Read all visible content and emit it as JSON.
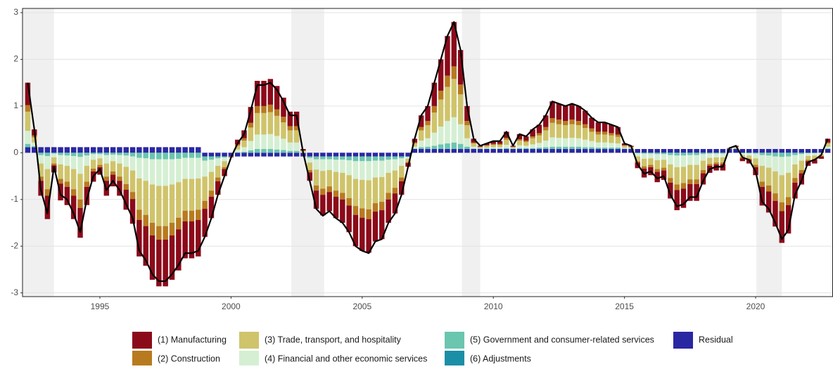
{
  "chart_data": {
    "type": "bar",
    "x": [
      1992.25,
      1992.5,
      1992.75,
      1993,
      1993.25,
      1993.5,
      1993.75,
      1994,
      1994.25,
      1994.5,
      1994.75,
      1995,
      1995.25,
      1995.5,
      1995.75,
      1996,
      1996.25,
      1996.5,
      1996.75,
      1997,
      1997.25,
      1997.5,
      1997.75,
      1998,
      1998.25,
      1998.5,
      1998.75,
      1999,
      1999.25,
      1999.5,
      1999.75,
      2000,
      2000.25,
      2000.5,
      2000.75,
      2001,
      2001.25,
      2001.5,
      2001.75,
      2002,
      2002.25,
      2002.5,
      2002.75,
      2003,
      2003.25,
      2003.5,
      2003.75,
      2004,
      2004.25,
      2004.5,
      2004.75,
      2005,
      2005.25,
      2005.5,
      2005.75,
      2006,
      2006.25,
      2006.5,
      2006.75,
      2007,
      2007.25,
      2007.5,
      2007.75,
      2008,
      2008.25,
      2008.5,
      2008.75,
      2009,
      2009.25,
      2009.5,
      2009.75,
      2010,
      2010.25,
      2010.5,
      2010.75,
      2011,
      2011.25,
      2011.5,
      2011.75,
      2012,
      2012.25,
      2012.5,
      2012.75,
      2013,
      2013.25,
      2013.5,
      2013.75,
      2014,
      2014.25,
      2014.5,
      2014.75,
      2015,
      2015.25,
      2015.5,
      2015.75,
      2016,
      2016.25,
      2016.5,
      2016.75,
      2017,
      2017.25,
      2017.5,
      2017.75,
      2018,
      2018.25,
      2018.5,
      2018.75,
      2019,
      2019.25,
      2019.5,
      2019.75,
      2020,
      2020.25,
      2020.5,
      2020.75,
      2021,
      2021.25,
      2021.5,
      2021.75,
      2022,
      2022.25,
      2022.5,
      2022.75
    ],
    "series": [
      {
        "name": "(1) Manufacturing",
        "color": "#8b0a1a",
        "values": [
          0.48,
          0.13,
          -0.32,
          -0.5,
          -0.15,
          -0.36,
          -0.39,
          -0.5,
          -0.64,
          -0.39,
          -0.22,
          -0.16,
          -0.32,
          -0.25,
          -0.32,
          -0.43,
          -0.53,
          -0.78,
          -0.85,
          -0.95,
          -1,
          -1,
          -0.95,
          -0.88,
          -0.79,
          -0.79,
          -0.78,
          -0.6,
          -0.46,
          -0.29,
          -0.15,
          -0.01,
          0.1,
          0.17,
          0.34,
          0.54,
          0.54,
          0.55,
          0.5,
          0.41,
          0.31,
          0.31,
          0.03,
          -0.18,
          -0.39,
          -0.44,
          -0.41,
          -0.46,
          -0.5,
          -0.57,
          -0.67,
          -0.71,
          -0.72,
          -0.64,
          -0.62,
          -0.5,
          -0.43,
          -0.29,
          -0.08,
          0.08,
          0.25,
          0.32,
          0.5,
          0.67,
          0.85,
          0.95,
          0.74,
          0.32,
          0.08,
          0.02,
          0.04,
          0.06,
          0.06,
          0.13,
          0.02,
          0.11,
          0.09,
          0.15,
          0.18,
          0.25,
          0.36,
          0.34,
          0.32,
          0.34,
          0.32,
          0.29,
          0.23,
          0.2,
          0.2,
          0.18,
          0.16,
          0.04,
          0.02,
          -0.12,
          -0.19,
          -0.17,
          -0.22,
          -0.2,
          -0.34,
          -0.43,
          -0.41,
          -0.36,
          -0.36,
          -0.24,
          -0.15,
          -0.13,
          -0.13,
          0.01,
          0.02,
          -0.06,
          -0.08,
          -0.17,
          -0.4,
          -0.45,
          -0.55,
          -0.68,
          -0.61,
          -0.34,
          -0.24,
          -0.1,
          -0.08,
          -0.05,
          0.08
        ]
      },
      {
        "name": "(2) Construction",
        "color": "#b87a1f",
        "values": [
          0.14,
          0.04,
          -0.09,
          -0.14,
          -0.04,
          -0.1,
          -0.11,
          -0.14,
          -0.18,
          -0.11,
          -0.06,
          -0.05,
          -0.09,
          -0.07,
          -0.09,
          -0.12,
          -0.15,
          -0.22,
          -0.24,
          -0.27,
          -0.29,
          -0.29,
          -0.27,
          -0.25,
          -0.23,
          -0.23,
          -0.22,
          -0.17,
          -0.13,
          -0.08,
          -0.04,
          0,
          0.03,
          0.05,
          0.1,
          0.15,
          0.15,
          0.16,
          0.14,
          0.12,
          0.09,
          0.09,
          0.01,
          -0.05,
          -0.11,
          -0.13,
          -0.12,
          -0.13,
          -0.14,
          -0.16,
          -0.19,
          -0.2,
          -0.21,
          -0.18,
          -0.18,
          -0.14,
          -0.12,
          -0.08,
          -0.02,
          0.02,
          0.07,
          0.09,
          0.14,
          0.19,
          0.24,
          0.27,
          0.21,
          0.09,
          0.02,
          0.01,
          0.01,
          0.02,
          0.02,
          0.04,
          0.01,
          0.03,
          0.03,
          0.04,
          0.05,
          0.07,
          0.1,
          0.1,
          0.09,
          0.1,
          0.09,
          0.08,
          0.07,
          0.06,
          0.06,
          0.05,
          0.05,
          0.01,
          0.01,
          -0.03,
          -0.05,
          -0.05,
          -0.06,
          -0.06,
          -0.1,
          -0.12,
          -0.12,
          -0.1,
          -0.1,
          -0.07,
          -0.04,
          -0.04,
          -0.04,
          0,
          0.01,
          -0.02,
          -0.02,
          -0.05,
          -0.11,
          -0.13,
          -0.16,
          -0.19,
          -0.17,
          -0.1,
          -0.07,
          -0.03,
          -0.02,
          -0.01,
          0.02
        ]
      },
      {
        "name": "(3) Trade, transport, and hospitality",
        "color": "#cfc46b",
        "values": [
          0.41,
          0.11,
          -0.28,
          -0.43,
          -0.13,
          -0.31,
          -0.34,
          -0.43,
          -0.55,
          -0.34,
          -0.19,
          -0.14,
          -0.28,
          -0.22,
          -0.28,
          -0.37,
          -0.46,
          -0.67,
          -0.73,
          -0.82,
          -0.86,
          -0.86,
          -0.82,
          -0.76,
          -0.68,
          -0.68,
          -0.67,
          -0.52,
          -0.4,
          -0.25,
          -0.13,
          -0.01,
          0.08,
          0.14,
          0.29,
          0.46,
          0.46,
          0.47,
          0.43,
          0.35,
          0.26,
          0.26,
          0.02,
          -0.16,
          -0.34,
          -0.38,
          -0.35,
          -0.4,
          -0.43,
          -0.49,
          -0.58,
          -0.61,
          -0.62,
          -0.55,
          -0.53,
          -0.43,
          -0.37,
          -0.25,
          -0.07,
          0.07,
          0.22,
          0.28,
          0.43,
          0.58,
          0.73,
          0.82,
          0.64,
          0.28,
          0.07,
          0.02,
          0.04,
          0.05,
          0.05,
          0.11,
          0.02,
          0.1,
          0.08,
          0.13,
          0.16,
          0.22,
          0.31,
          0.29,
          0.28,
          0.29,
          0.28,
          0.25,
          0.2,
          0.17,
          0.17,
          0.16,
          0.14,
          0.04,
          0.02,
          -0.1,
          -0.16,
          -0.14,
          -0.19,
          -0.17,
          -0.29,
          -0.37,
          -0.35,
          -0.31,
          -0.31,
          -0.2,
          -0.13,
          -0.11,
          -0.11,
          0.01,
          0.02,
          -0.05,
          -0.07,
          -0.14,
          -0.34,
          -0.38,
          -0.47,
          -0.58,
          -0.52,
          -0.29,
          -0.2,
          -0.08,
          -0.07,
          -0.04,
          0.07
        ]
      },
      {
        "name": "(4) Financial and other economic services",
        "color": "#d5efd3",
        "values": [
          0.28,
          0.08,
          -0.18,
          -0.28,
          -0.08,
          -0.2,
          -0.22,
          -0.28,
          -0.36,
          -0.22,
          -0.12,
          -0.09,
          -0.18,
          -0.14,
          -0.18,
          -0.24,
          -0.3,
          -0.44,
          -0.48,
          -0.54,
          -0.57,
          -0.57,
          -0.54,
          -0.5,
          -0.45,
          -0.45,
          -0.44,
          -0.34,
          -0.26,
          -0.16,
          -0.08,
          0,
          0.06,
          0.1,
          0.2,
          0.31,
          0.31,
          0.32,
          0.29,
          0.24,
          0.18,
          0.18,
          0.02,
          -0.1,
          -0.22,
          -0.25,
          -0.23,
          -0.26,
          -0.28,
          -0.32,
          -0.38,
          -0.4,
          -0.41,
          -0.36,
          -0.35,
          -0.28,
          -0.24,
          -0.16,
          -0.04,
          0.04,
          0.14,
          0.18,
          0.28,
          0.38,
          0.48,
          0.54,
          0.42,
          0.18,
          0.04,
          0.01,
          0.02,
          0.03,
          0.03,
          0.07,
          0.01,
          0.06,
          0.05,
          0.08,
          0.1,
          0.14,
          0.2,
          0.19,
          0.18,
          0.19,
          0.18,
          0.16,
          0.13,
          0.11,
          0.11,
          0.1,
          0.09,
          0.02,
          0.01,
          -0.07,
          -0.11,
          -0.1,
          -0.13,
          -0.12,
          -0.2,
          -0.25,
          -0.24,
          -0.21,
          -0.21,
          -0.14,
          -0.09,
          -0.08,
          -0.08,
          0,
          0.01,
          -0.04,
          -0.05,
          -0.1,
          -0.23,
          -0.26,
          -0.32,
          -0.39,
          -0.35,
          -0.2,
          -0.14,
          -0.06,
          -0.05,
          -0.03,
          0.04
        ]
      },
      {
        "name": "(5) Government and consumer-related services",
        "color": "#6ac6ae",
        "values": [
          0.07,
          0.02,
          -0.05,
          -0.07,
          -0.02,
          -0.05,
          -0.06,
          -0.07,
          -0.09,
          -0.06,
          -0.03,
          -0.03,
          -0.05,
          -0.04,
          -0.05,
          -0.06,
          -0.08,
          -0.11,
          -0.12,
          -0.14,
          -0.14,
          -0.14,
          -0.14,
          -0.13,
          -0.11,
          -0.11,
          -0.11,
          -0.09,
          -0.07,
          -0.04,
          -0.02,
          0,
          0.01,
          0.02,
          0.05,
          0.08,
          0.08,
          0.08,
          0.07,
          0.06,
          0.04,
          0.04,
          0,
          -0.03,
          -0.06,
          -0.06,
          -0.06,
          -0.07,
          -0.07,
          -0.08,
          -0.1,
          -0.1,
          -0.1,
          -0.09,
          -0.09,
          -0.07,
          -0.06,
          -0.04,
          -0.01,
          0.01,
          0.04,
          0.05,
          0.07,
          0.1,
          0.12,
          0.14,
          0.11,
          0.05,
          0.01,
          0.01,
          0.01,
          0.01,
          0.01,
          0.02,
          0.01,
          0.02,
          0.02,
          0.02,
          0.03,
          0.04,
          0.05,
          0.05,
          0.05,
          0.05,
          0.05,
          0.04,
          0.04,
          0.03,
          0.03,
          0.03,
          0.03,
          0.01,
          0.01,
          -0.01,
          -0.02,
          -0.02,
          -0.03,
          -0.03,
          -0.05,
          -0.06,
          -0.06,
          -0.05,
          -0.05,
          -0.03,
          -0.02,
          -0.02,
          -0.02,
          0,
          0.01,
          -0.01,
          -0.01,
          -0.02,
          -0.05,
          -0.06,
          -0.08,
          -0.09,
          -0.08,
          -0.05,
          -0.03,
          -0.01,
          -0.01,
          0,
          0.01
        ]
      },
      {
        "name": "(6) Adjustments",
        "color": "#1a8fa6",
        "values": [
          0,
          0,
          0,
          0,
          0,
          0,
          0,
          0,
          0,
          0,
          0,
          0,
          0,
          0,
          0,
          0,
          0,
          0,
          0,
          0,
          0,
          0,
          0,
          0,
          0,
          0,
          0,
          0,
          0,
          0,
          0,
          0,
          0,
          0,
          0,
          0,
          0,
          0,
          0,
          0,
          0,
          0,
          0,
          0,
          0,
          0,
          0,
          0,
          0,
          0,
          0,
          0,
          0,
          0,
          0,
          0,
          0,
          0,
          0,
          0,
          0,
          0,
          0,
          0,
          0,
          0,
          0,
          0,
          0,
          0,
          0,
          0,
          0,
          0,
          0,
          0,
          0,
          0,
          0,
          0,
          0,
          0,
          0,
          0,
          0,
          0,
          0,
          0,
          0,
          0,
          0,
          0,
          0,
          0,
          0,
          0,
          0,
          0,
          0,
          0,
          0,
          0,
          0,
          0,
          0,
          0,
          0,
          0,
          0,
          0,
          0,
          0,
          0,
          0,
          0,
          0,
          0,
          0,
          0,
          0,
          0,
          0,
          0
        ]
      },
      {
        "name": "Residual",
        "color": "#2a27a3",
        "values": [
          0.12,
          0.12,
          0.12,
          0.12,
          0.12,
          0.12,
          0.12,
          0.12,
          0.12,
          0.12,
          0.12,
          0.12,
          0.12,
          0.12,
          0.12,
          0.12,
          0.12,
          0.12,
          0.12,
          0.12,
          0.12,
          0.12,
          0.12,
          0.12,
          0.12,
          0.12,
          0.12,
          -0.08,
          -0.08,
          -0.08,
          -0.08,
          -0.08,
          -0.08,
          -0.08,
          -0.08,
          -0.08,
          -0.08,
          -0.08,
          -0.08,
          -0.08,
          -0.08,
          -0.08,
          -0.08,
          -0.08,
          -0.08,
          -0.08,
          -0.08,
          -0.08,
          -0.08,
          -0.08,
          -0.08,
          -0.08,
          -0.08,
          -0.08,
          -0.08,
          -0.08,
          -0.08,
          -0.08,
          -0.08,
          0.08,
          0.08,
          0.08,
          0.08,
          0.08,
          0.08,
          0.08,
          0.08,
          0.08,
          0.08,
          0.08,
          0.08,
          0.08,
          0.08,
          0.08,
          0.08,
          0.08,
          0.08,
          0.08,
          0.08,
          0.08,
          0.08,
          0.08,
          0.08,
          0.08,
          0.08,
          0.08,
          0.08,
          0.08,
          0.08,
          0.08,
          0.08,
          0.08,
          0.08,
          0.08,
          0.08,
          0.08,
          0.08,
          0.08,
          0.08,
          0.08,
          0.08,
          0.08,
          0.08,
          0.08,
          0.08,
          0.08,
          0.08,
          0.08,
          0.08,
          0.08,
          0.08,
          0.08,
          0.08,
          0.08,
          0.08,
          0.08,
          0.08,
          0.08,
          0.08,
          0.08,
          0.08,
          0.08,
          0.08
        ]
      }
    ],
    "line_values": [
      1.5,
      0.5,
      -0.8,
      -1.3,
      -0.3,
      -0.9,
      -1,
      -1.3,
      -1.7,
      -1,
      -0.5,
      -0.35,
      -0.8,
      -0.6,
      -0.8,
      -1.1,
      -1.4,
      -2.1,
      -2.3,
      -2.6,
      -2.75,
      -2.75,
      -2.6,
      -2.4,
      -2.15,
      -2.15,
      -2.1,
      -1.8,
      -1.4,
      -0.9,
      -0.5,
      -0.1,
      0.2,
      0.4,
      0.9,
      1.45,
      1.45,
      1.5,
      1.35,
      1.1,
      0.8,
      0.8,
      0,
      -0.6,
      -1.2,
      -1.35,
      -1.25,
      -1.4,
      -1.5,
      -1.7,
      -2,
      -2.1,
      -2.15,
      -1.9,
      -1.85,
      -1.5,
      -1.3,
      -0.9,
      -0.3,
      0.3,
      0.8,
      1,
      1.5,
      2,
      2.5,
      2.8,
      2.2,
      1,
      0.3,
      0.15,
      0.2,
      0.25,
      0.25,
      0.45,
      0.15,
      0.4,
      0.35,
      0.5,
      0.6,
      0.8,
      1.1,
      1.05,
      1,
      1.05,
      1,
      0.9,
      0.75,
      0.65,
      0.65,
      0.6,
      0.55,
      0.2,
      0.15,
      -0.25,
      -0.45,
      -0.4,
      -0.55,
      -0.5,
      -0.9,
      -1.15,
      -1.1,
      -0.95,
      -0.95,
      -0.6,
      -0.35,
      -0.3,
      -0.3,
      0.1,
      0.15,
      -0.1,
      -0.15,
      -0.4,
      -1.05,
      -1.2,
      -1.5,
      -1.85,
      -1.65,
      -0.9,
      -0.6,
      -0.2,
      -0.15,
      -0.05,
      0.3
    ],
    "line_color": "#000000",
    "shaded_periods": [
      [
        1992.05,
        1993.25
      ],
      [
        2002.3,
        2003.55
      ],
      [
        2008.8,
        2009.5
      ],
      [
        2020.03,
        2021
      ]
    ],
    "xlim": [
      1992.05,
      2022.95
    ],
    "ylim": [
      -3.08,
      3.09
    ],
    "xticks": [
      1995,
      2000,
      2005,
      2010,
      2015,
      2020
    ],
    "yticks": [
      -3,
      -2,
      -1,
      0,
      1,
      2,
      3
    ],
    "grid": true
  }
}
